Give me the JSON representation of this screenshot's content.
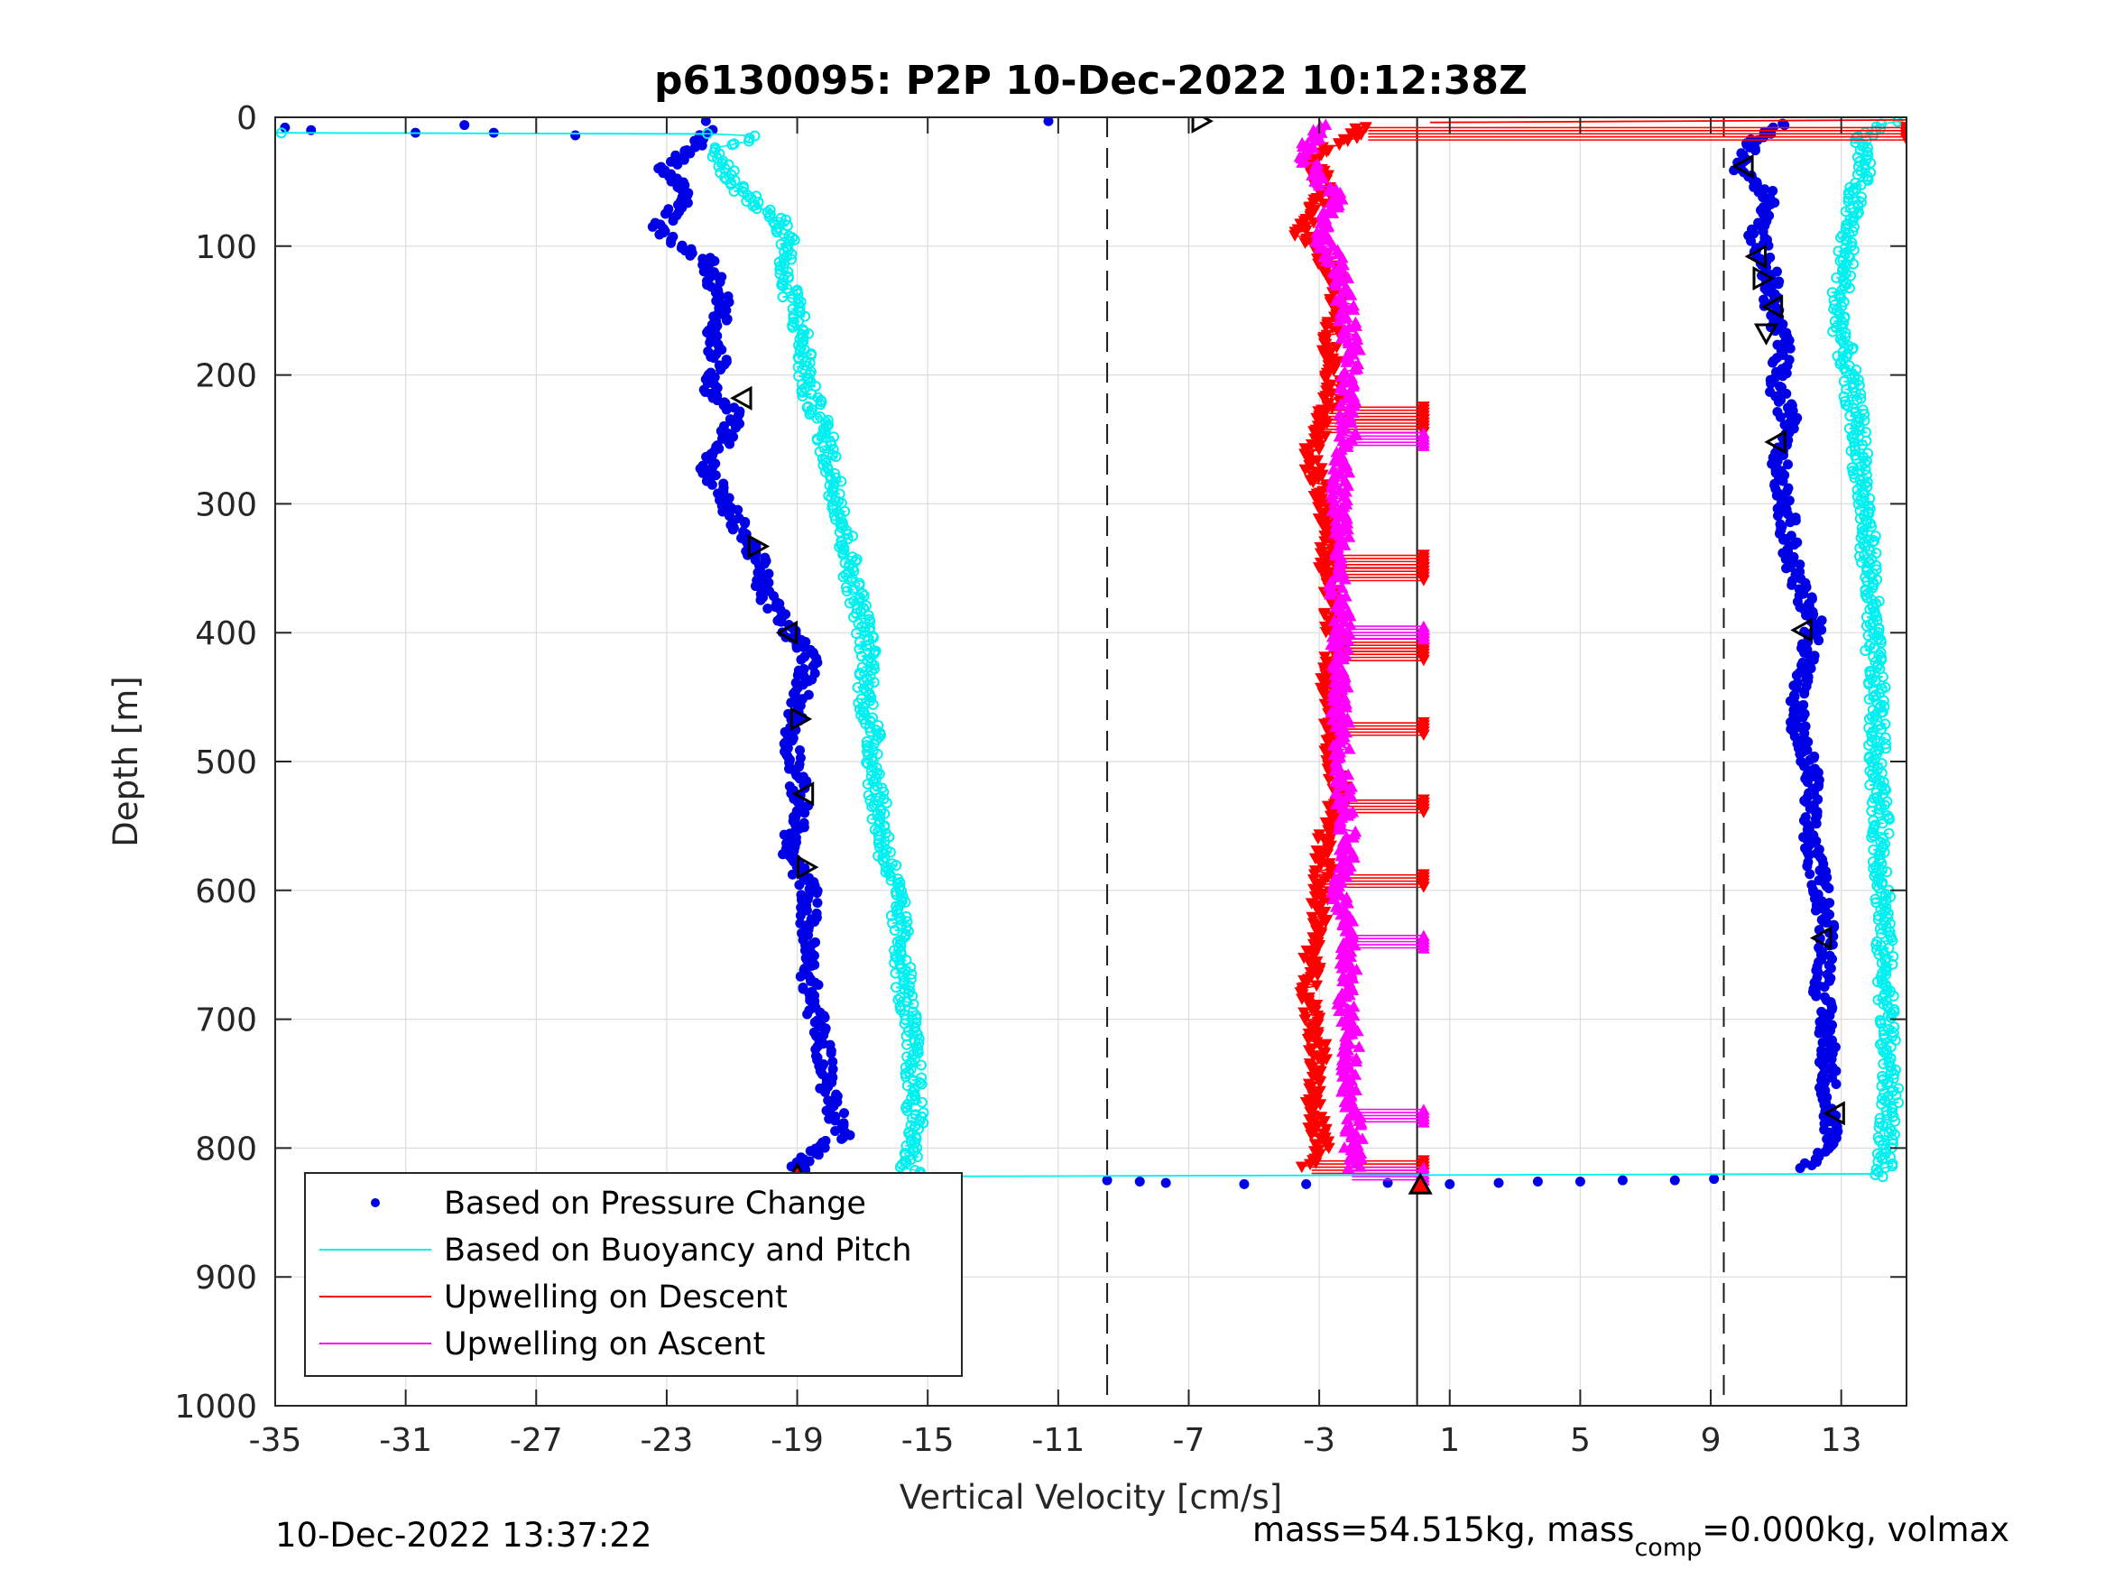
{
  "chart_data": {
    "type": "scatter",
    "title": "p6130095: P2P 10-Dec-2022 10:12:38Z",
    "xlabel": "Vertical Velocity [cm/s]",
    "ylabel": "Depth [m]",
    "xlim": [
      -35,
      15
    ],
    "ylim": [
      0,
      1000
    ],
    "y_reversed": true,
    "grid": true,
    "x_ticks": [
      "-35",
      "-31",
      "-27",
      "-23",
      "-19",
      "-15",
      "-11",
      "-7",
      "-3",
      "1",
      "5",
      "9",
      "13"
    ],
    "y_ticks": [
      "0",
      "100",
      "200",
      "300",
      "400",
      "500",
      "600",
      "700",
      "800",
      "900",
      "1000"
    ],
    "reference_lines": [
      {
        "x": -9.5,
        "style": "dashed"
      },
      {
        "x": 0,
        "style": "solid"
      },
      {
        "x": 9.4,
        "style": "dashed"
      }
    ],
    "legend_position": "bottom-left",
    "series": [
      {
        "name": "Based on Pressure Change",
        "color": "#0000e6",
        "marker": "dot",
        "segments": [
          {
            "depth": [
              10,
              25,
              40,
              60,
              75,
              90,
              110,
              130,
              150,
              170,
              190,
              210,
              230,
              250,
              270,
              300,
              320,
              345,
              370,
              400,
              420,
              450,
              480,
              510,
              540,
              570,
              600,
              640,
              680,
              720,
              760,
              790,
              810,
              822
            ],
            "velocity": [
              -21.6,
              -22.2,
              -23.1,
              -22.3,
              -22.9,
              -23.3,
              -21.8,
              -21.5,
              -21.2,
              -21.6,
              -21.4,
              -21.7,
              -20.8,
              -21.2,
              -21.8,
              -21.2,
              -20.7,
              -20.2,
              -20.0,
              -19.2,
              -18.6,
              -18.9,
              -19.2,
              -19.0,
              -18.9,
              -19.3,
              -18.6,
              -18.7,
              -18.6,
              -18.2,
              -18.0,
              -17.6,
              -18.8,
              -19.1
            ]
          },
          {
            "depth": [
              5,
              20,
              40,
              60,
              90,
              120,
              150,
              180,
              210,
              240,
              270,
              300,
              330,
              360,
              390,
              420,
              450,
              480,
              510,
              540,
              570,
              600,
              640,
              680,
              720,
              760,
              790,
              815
            ],
            "velocity": [
              11.2,
              10.3,
              9.8,
              10.8,
              10.4,
              10.8,
              10.9,
              11.2,
              11.0,
              11.5,
              11.1,
              11.3,
              11.4,
              11.6,
              12.2,
              12.0,
              11.6,
              11.7,
              12.1,
              12.0,
              12.1,
              12.4,
              12.6,
              12.4,
              12.6,
              12.6,
              12.7,
              12.0
            ]
          }
        ],
        "scattered_points": [
          {
            "velocity": -34.7,
            "depth": 8
          },
          {
            "velocity": -33.9,
            "depth": 10
          },
          {
            "velocity": -30.7,
            "depth": 12
          },
          {
            "velocity": -29.2,
            "depth": 6
          },
          {
            "velocity": -28.3,
            "depth": 12
          },
          {
            "velocity": -25.8,
            "depth": 14
          },
          {
            "velocity": -21.8,
            "depth": 3
          },
          {
            "velocity": -11.3,
            "depth": 3
          },
          {
            "velocity": -9.5,
            "depth": 825
          },
          {
            "velocity": -8.5,
            "depth": 826
          },
          {
            "velocity": -7.7,
            "depth": 827
          },
          {
            "velocity": -5.3,
            "depth": 828
          },
          {
            "velocity": -3.4,
            "depth": 828
          },
          {
            "velocity": -0.9,
            "depth": 827
          },
          {
            "velocity": 1.0,
            "depth": 828
          },
          {
            "velocity": 2.5,
            "depth": 827
          },
          {
            "velocity": 3.7,
            "depth": 826
          },
          {
            "velocity": 5.0,
            "depth": 826
          },
          {
            "velocity": 6.3,
            "depth": 825
          },
          {
            "velocity": 7.9,
            "depth": 825
          },
          {
            "velocity": 9.1,
            "depth": 824
          }
        ]
      },
      {
        "name": "Based on Buoyancy and Pitch",
        "color": "#00f0f0",
        "marker": "circle-line",
        "segments": [
          {
            "depth": [
              12,
              13,
              15,
              25,
              40,
              60,
              80,
              100,
              120,
              150,
              180,
              210,
              240,
              270,
              300,
              330,
              360,
              390,
              420,
              450,
              480,
              510,
              540,
              570,
              600,
              640,
              680,
              720,
              760,
              790,
              815,
              822
            ],
            "velocity": [
              -35.0,
              -21.9,
              -20.2,
              -21.5,
              -21.2,
              -20.6,
              -19.6,
              -19.2,
              -19.5,
              -19.0,
              -18.8,
              -18.7,
              -18.2,
              -18.0,
              -17.7,
              -17.5,
              -17.3,
              -17.0,
              -16.8,
              -16.9,
              -16.7,
              -16.6,
              -16.5,
              -16.3,
              -16.0,
              -15.8,
              -15.7,
              -15.5,
              -15.4,
              -15.4,
              -15.6,
              -15.2
            ]
          },
          {
            "depth": [
              2,
              15,
              40,
              60,
              90,
              120,
              150,
              180,
              210,
              240,
              270,
              300,
              330,
              360,
              390,
              420,
              450,
              480,
              510,
              540,
              570,
              600,
              640,
              680,
              720,
              760,
              790,
              815,
              822
            ],
            "velocity": [
              14.8,
              13.6,
              13.7,
              13.4,
              13.2,
              13.1,
              12.9,
              13.1,
              13.3,
              13.5,
              13.6,
              13.7,
              13.8,
              13.9,
              13.9,
              14.0,
              14.1,
              14.1,
              14.1,
              14.2,
              14.2,
              14.3,
              14.3,
              14.4,
              14.4,
              14.5,
              14.4,
              14.3,
              14.0
            ]
          }
        ]
      },
      {
        "name": "Upwelling on Descent",
        "color": "#ff0000",
        "marker": "triangle-down",
        "segments": [
          {
            "depth": [
              8,
              30,
              60,
              90,
              120,
              150,
              180,
              210,
              240,
              260,
              290,
              320,
              350,
              380,
              410,
              440,
              470,
              500,
              530,
              560,
              590,
              620,
              650,
              680,
              710,
              740,
              770,
              800,
              815
            ],
            "velocity": [
              -1.5,
              -3.2,
              -2.8,
              -3.6,
              -2.6,
              -2.4,
              -2.7,
              -2.5,
              -2.9,
              -3.3,
              -3.0,
              -2.7,
              -2.8,
              -2.6,
              -2.5,
              -2.7,
              -2.6,
              -2.6,
              -2.4,
              -2.8,
              -2.9,
              -3.0,
              -3.2,
              -3.3,
              -3.1,
              -3.0,
              -3.2,
              -2.9,
              -3.4
            ]
          }
        ],
        "spikes": [
          {
            "depth": 8,
            "to_velocity": 15.0
          },
          {
            "depth": 225,
            "to_velocity": 0.2
          },
          {
            "depth": 235,
            "to_velocity": 0.2
          },
          {
            "depth": 340,
            "to_velocity": 0.2
          },
          {
            "depth": 350,
            "to_velocity": 0.2
          },
          {
            "depth": 405,
            "to_velocity": 0.2
          },
          {
            "depth": 412,
            "to_velocity": 0.2
          },
          {
            "depth": 470,
            "to_velocity": 0.2
          },
          {
            "depth": 530,
            "to_velocity": 0.2
          },
          {
            "depth": 588,
            "to_velocity": 0.2
          },
          {
            "depth": 810,
            "to_velocity": 0.2
          }
        ]
      },
      {
        "name": "Upwelling on Ascent",
        "color": "#ff00ff",
        "marker": "triangle-up",
        "segments": [
          {
            "depth": [
              5,
              30,
              60,
              90,
              120,
              150,
              180,
              210,
              240,
              270,
              300,
              330,
              360,
              390,
              420,
              450,
              480,
              510,
              540,
              570,
              600,
              630,
              660,
              690,
              720,
              750,
              780,
              815
            ],
            "velocity": [
              -3.0,
              -3.5,
              -2.5,
              -3.0,
              -2.3,
              -2.2,
              -2.0,
              -2.2,
              -2.1,
              -2.3,
              -2.4,
              -2.2,
              -2.5,
              -2.3,
              -2.4,
              -2.4,
              -2.3,
              -2.3,
              -2.2,
              -2.1,
              -2.4,
              -2.2,
              -2.1,
              -2.2,
              -2.0,
              -2.1,
              -1.9,
              -2.0
            ]
          }
        ],
        "spikes": [
          {
            "depth": 245,
            "to_velocity": 0.2
          },
          {
            "depth": 395,
            "to_velocity": 0.2
          },
          {
            "depth": 635,
            "to_velocity": 0.2
          },
          {
            "depth": 770,
            "to_velocity": 0.2
          },
          {
            "depth": 815,
            "to_velocity": 0.2
          }
        ]
      }
    ],
    "event_markers": [
      {
        "velocity": -6.6,
        "depth": 3,
        "shape": "triangle-right"
      },
      {
        "velocity": -20.7,
        "depth": 218,
        "shape": "triangle-left"
      },
      {
        "velocity": -20.2,
        "depth": 333,
        "shape": "triangle-right"
      },
      {
        "velocity": -19.3,
        "depth": 400,
        "shape": "triangle-left"
      },
      {
        "velocity": -18.9,
        "depth": 467,
        "shape": "triangle-right"
      },
      {
        "velocity": -18.8,
        "depth": 525,
        "shape": "triangle-left"
      },
      {
        "velocity": -18.7,
        "depth": 582,
        "shape": "triangle-right"
      },
      {
        "velocity": -19.0,
        "depth": 820,
        "shape": "triangle-up"
      },
      {
        "velocity": 0.1,
        "depth": 828,
        "shape": "triangle-up"
      },
      {
        "velocity": 10.0,
        "depth": 38,
        "shape": "triangle-left"
      },
      {
        "velocity": 10.4,
        "depth": 108,
        "shape": "triangle-left"
      },
      {
        "velocity": 10.6,
        "depth": 125,
        "shape": "triangle-right"
      },
      {
        "velocity": 10.9,
        "depth": 147,
        "shape": "triangle-left"
      },
      {
        "velocity": 10.7,
        "depth": 168,
        "shape": "triangle-down"
      },
      {
        "velocity": 11.0,
        "depth": 252,
        "shape": "triangle-left"
      },
      {
        "velocity": 11.8,
        "depth": 398,
        "shape": "triangle-left"
      },
      {
        "velocity": 12.4,
        "depth": 637,
        "shape": "triangle-left"
      },
      {
        "velocity": 12.8,
        "depth": 773,
        "shape": "triangle-left"
      }
    ]
  },
  "footer": {
    "timestamp": "10-Dec-2022 13:37:22",
    "mass_text": "mass=54.515kg, mass",
    "mass_sub": "comp",
    "mass_tail": "=0.000kg, volmax"
  }
}
